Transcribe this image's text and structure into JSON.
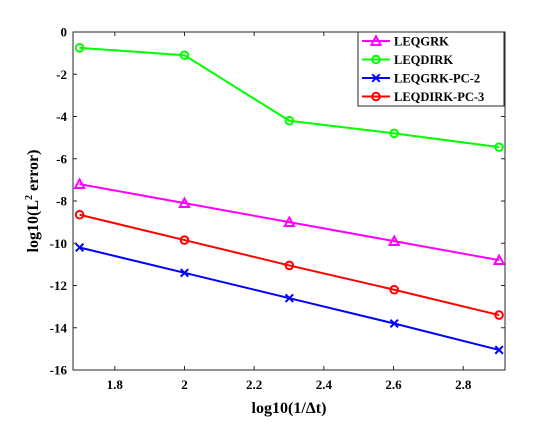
{
  "chart_data": {
    "type": "line",
    "title": "",
    "xlabel": "log10(1/Δt)",
    "ylabel_parts": [
      "log10(L",
      "2",
      " error)"
    ],
    "xlim": [
      1.68,
      2.92
    ],
    "ylim": [
      -16,
      0
    ],
    "x_ticks": [
      1.8,
      2.0,
      2.2,
      2.4,
      2.6,
      2.8
    ],
    "x_tick_labels": [
      "1.8",
      "2",
      "2.2",
      "2.4",
      "2.6",
      "2.8"
    ],
    "y_ticks": [
      0,
      -2,
      -4,
      -6,
      -8,
      -10,
      -12,
      -14,
      -16
    ],
    "y_tick_labels": [
      "0",
      "-2",
      "-4",
      "-6",
      "-8",
      "-10",
      "-12",
      "-14",
      "-16"
    ],
    "grid": false,
    "legend_position": "top-right",
    "x": [
      1.699,
      2.0,
      2.301,
      2.602,
      2.903
    ],
    "series": [
      {
        "name": "LEQGRK",
        "color": "#ff00ff",
        "marker": "triangle",
        "values": [
          -7.2,
          -8.1,
          -9.0,
          -9.9,
          -10.8
        ]
      },
      {
        "name": "LEQDIRK",
        "color": "#00ff00",
        "marker": "circle",
        "values": [
          -0.75,
          -1.1,
          -4.2,
          -4.8,
          -5.45
        ]
      },
      {
        "name": "LEQGRK-PC-2",
        "color": "#0000ff",
        "marker": "x",
        "values": [
          -10.2,
          -11.4,
          -12.6,
          -13.8,
          -15.05
        ]
      },
      {
        "name": "LEQDIRK-PC-3",
        "color": "#ff0000",
        "marker": "circle",
        "values": [
          -8.65,
          -9.85,
          -11.05,
          -12.2,
          -13.4
        ]
      }
    ]
  }
}
